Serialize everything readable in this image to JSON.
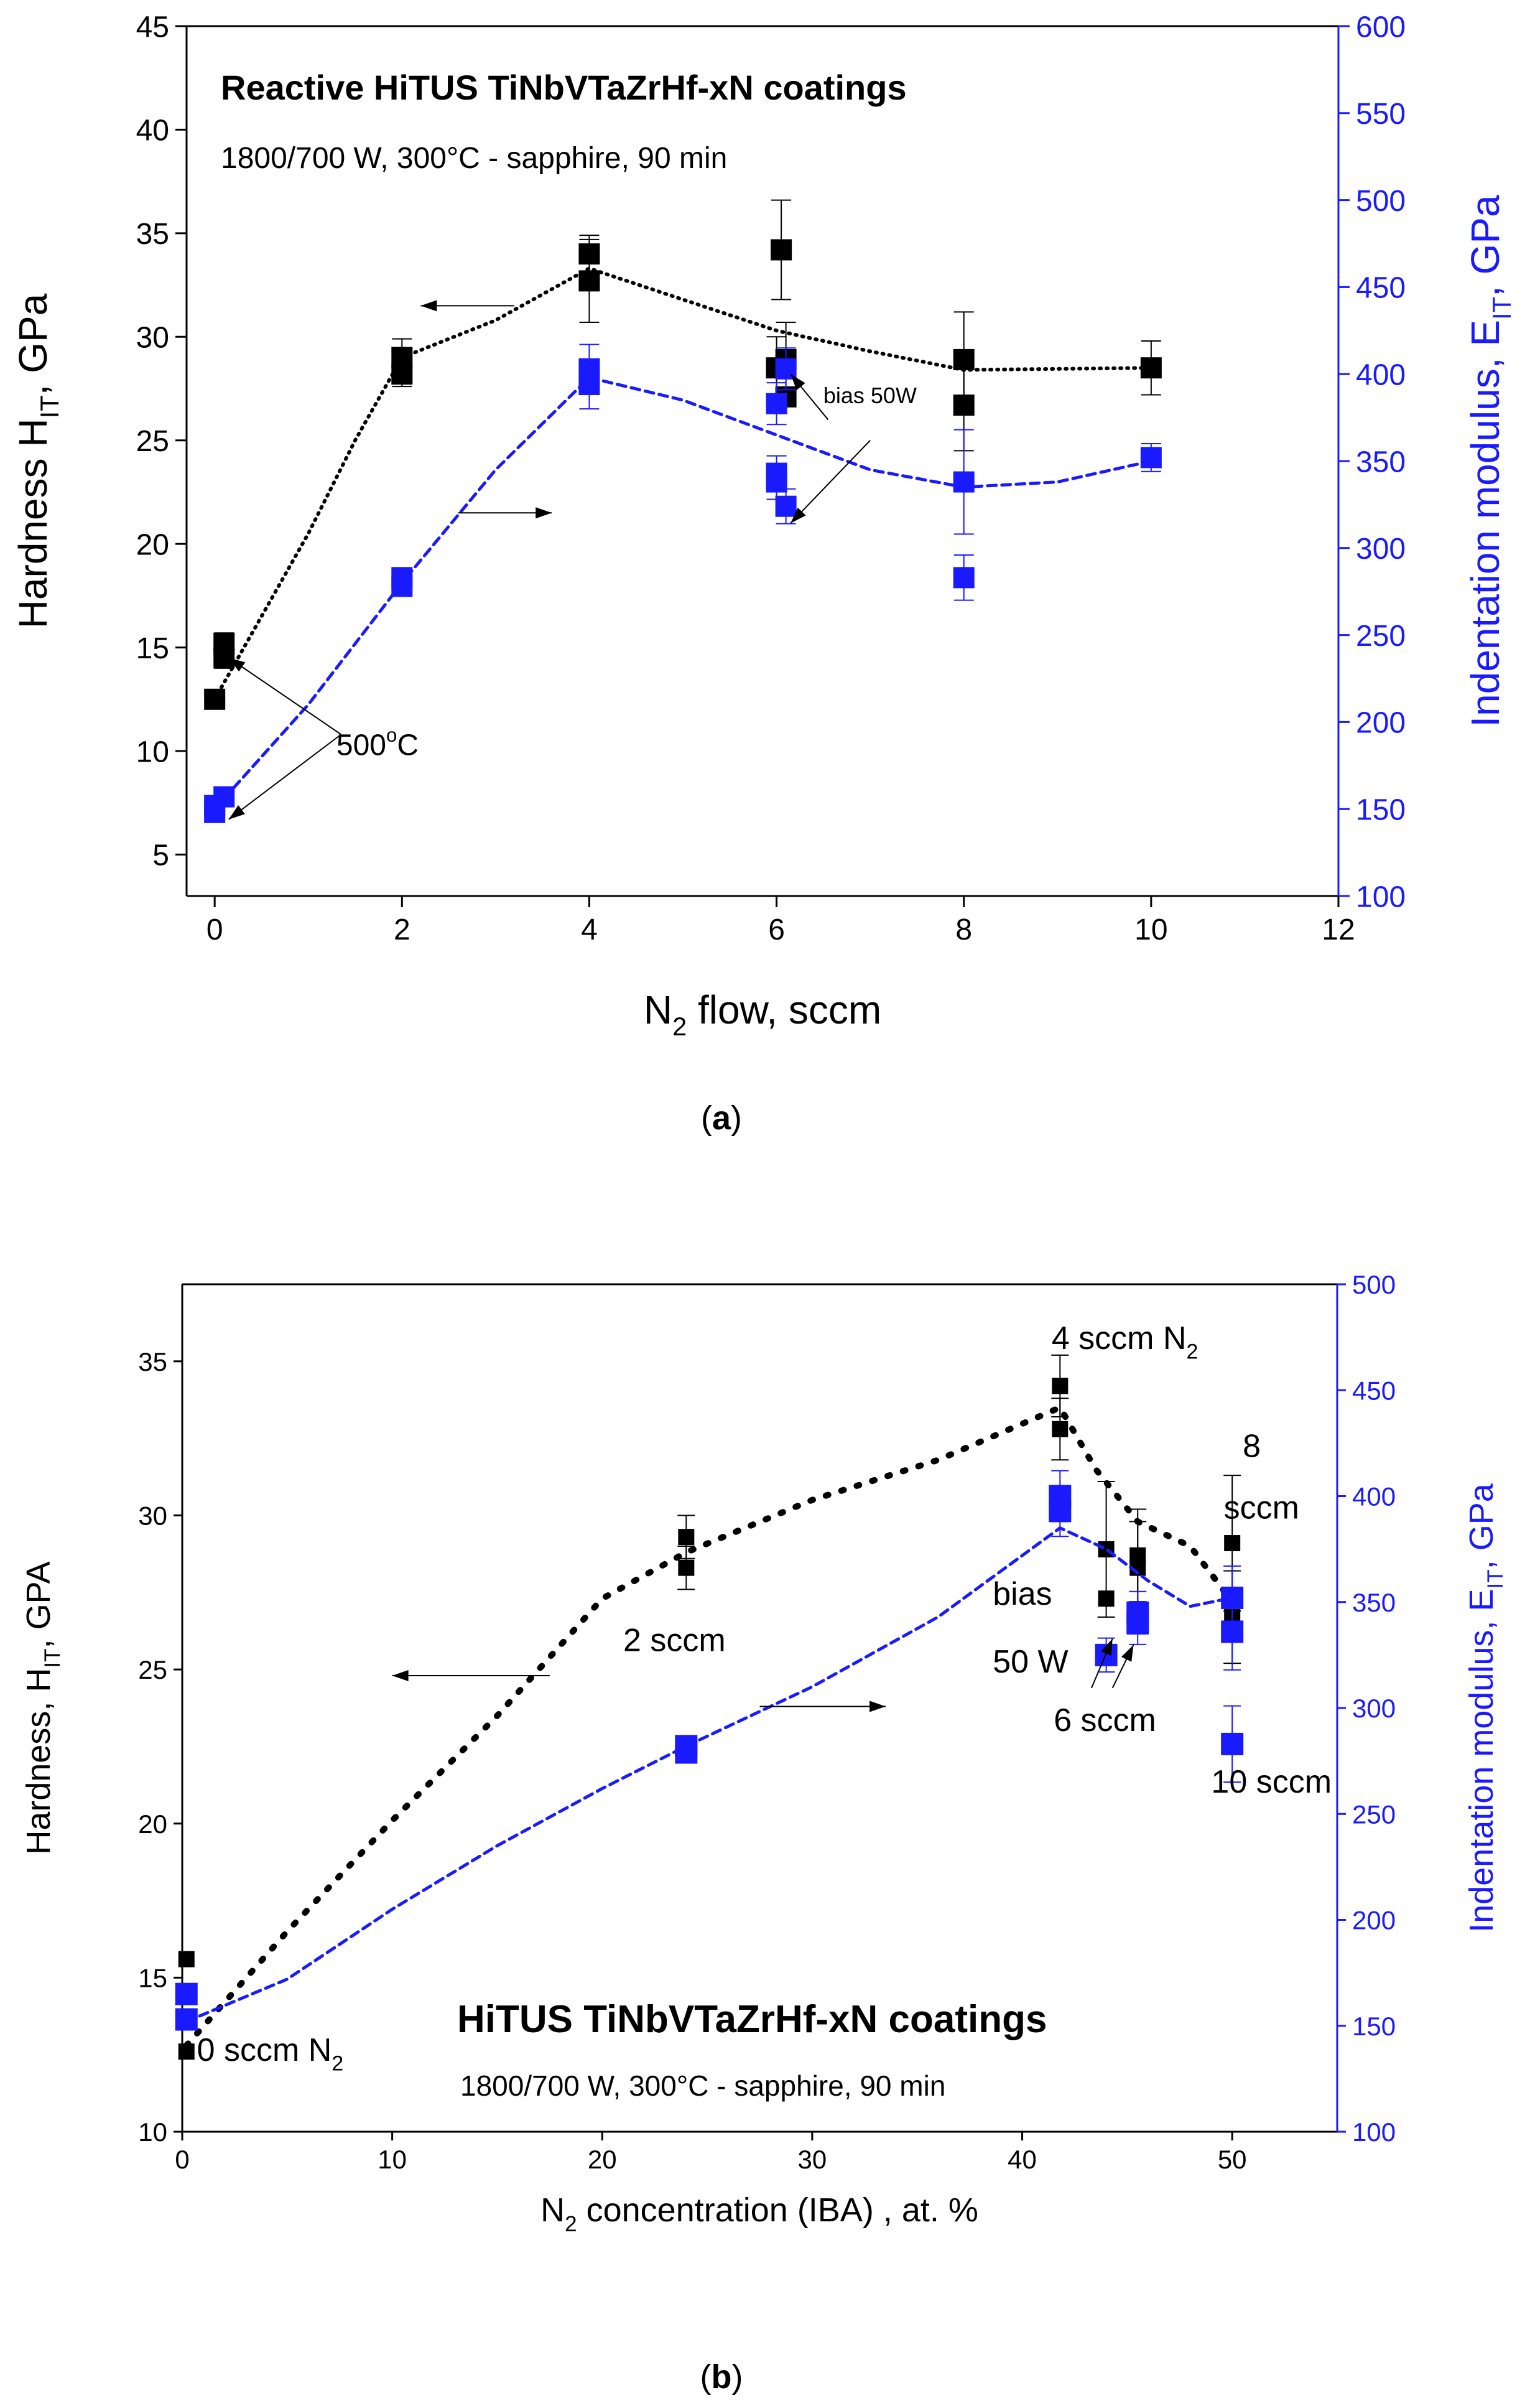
{
  "colors": {
    "hardness": "#000000",
    "modulus": "#1a1aff",
    "axis_right": "#1a1aff"
  },
  "panels": [
    {
      "label": "a",
      "caption_open": "(",
      "caption_close": ")"
    },
    {
      "label": "b",
      "caption_open": "(",
      "caption_close": ")"
    }
  ],
  "chart_data": [
    {
      "type": "scatter",
      "title": "Reactive HiTUS TiNbVTaZrHf-xN coatings",
      "subtitle": "1800/700 W, 300°C - sapphire, 90 min",
      "xlabel": {
        "main": "N",
        "sub": "2",
        "rest": " flow, sccm"
      },
      "ylabel_left": {
        "main": "Hardness H",
        "sub": "IT",
        "rest": ", GPa"
      },
      "ylabel_right": {
        "main": "Indentation modulus, E",
        "sub": "IT",
        "rest": ", GPa"
      },
      "xlim": [
        -0.3,
        12
      ],
      "ylim_left": [
        3,
        45
      ],
      "ylim_right": [
        100,
        600
      ],
      "xticks": [
        0,
        2,
        4,
        6,
        8,
        10,
        12
      ],
      "yticks_left": [
        5,
        10,
        15,
        20,
        25,
        30,
        35,
        40,
        45
      ],
      "yticks_right": [
        100,
        150,
        200,
        250,
        300,
        350,
        400,
        450,
        500,
        550,
        600
      ],
      "series": [
        {
          "axis": "left",
          "points": [
            {
              "x": 0.0,
              "y": 12.5,
              "err": 0
            },
            {
              "x": 0.1,
              "y": 15.2,
              "err": 0.5
            },
            {
              "x": 0.1,
              "y": 14.5,
              "err": 0.5
            },
            {
              "x": 2.0,
              "y": 29.0,
              "err": 0.9
            },
            {
              "x": 2.0,
              "y": 28.2,
              "err": 0.6
            },
            {
              "x": 4.0,
              "y": 34.0,
              "err": 0.9
            },
            {
              "x": 4.0,
              "y": 32.7,
              "err": 2.0
            },
            {
              "x": 6.0,
              "y": 28.5,
              "err": 1.5
            },
            {
              "x": 6.05,
              "y": 34.2,
              "err": 2.4
            },
            {
              "x": 6.1,
              "y": 28.9,
              "err": 1.8
            },
            {
              "x": 6.1,
              "y": 27.1,
              "err": 0
            },
            {
              "x": 8.0,
              "y": 28.9,
              "err": 2.3
            },
            {
              "x": 8.0,
              "y": 26.7,
              "err": 2.2
            },
            {
              "x": 10.0,
              "y": 28.5,
              "err": 1.3
            }
          ],
          "trend": [
            [
              0,
              12.5
            ],
            [
              0.5,
              16.5
            ],
            [
              1.0,
              20.5
            ],
            [
              1.5,
              25.0
            ],
            [
              2,
              29.0
            ],
            [
              3,
              30.8
            ],
            [
              4,
              33.3
            ],
            [
              5,
              31.8
            ],
            [
              6,
              30.3
            ],
            [
              7,
              29.3
            ],
            [
              8,
              28.4
            ],
            [
              10,
              28.5
            ]
          ]
        },
        {
          "axis": "right",
          "points": [
            {
              "x": 0.0,
              "y": 152,
              "err": 0
            },
            {
              "x": 0.0,
              "y": 148,
              "err": 0
            },
            {
              "x": 0.1,
              "y": 157,
              "err": 4
            },
            {
              "x": 2.0,
              "y": 283,
              "err": 5
            },
            {
              "x": 2.0,
              "y": 278,
              "err": 4
            },
            {
              "x": 4.0,
              "y": 403,
              "err": 14
            },
            {
              "x": 4.0,
              "y": 394,
              "err": 14
            },
            {
              "x": 6.0,
              "y": 383,
              "err": 12
            },
            {
              "x": 6.0,
              "y": 343,
              "err": 10
            },
            {
              "x": 6.0,
              "y": 338,
              "err": 10
            },
            {
              "x": 6.1,
              "y": 324,
              "err": 10
            },
            {
              "x": 6.1,
              "y": 403,
              "err": 12
            },
            {
              "x": 8.0,
              "y": 283,
              "err": 13
            },
            {
              "x": 8.0,
              "y": 338,
              "err": 30
            },
            {
              "x": 10.0,
              "y": 352,
              "err": 8
            }
          ],
          "trend": [
            [
              0,
              150
            ],
            [
              1,
              210
            ],
            [
              2,
              280
            ],
            [
              3,
              345
            ],
            [
              4,
              398
            ],
            [
              5,
              385
            ],
            [
              6,
              365
            ],
            [
              7,
              345
            ],
            [
              8,
              335
            ],
            [
              9,
              338
            ],
            [
              10,
              350
            ]
          ]
        }
      ],
      "annotations": [
        {
          "text": "bias 50W",
          "x": 6.5,
          "y": 26.8
        },
        {
          "text": "500",
          "sup": "o",
          "tail": "C",
          "x": 1.3,
          "y": 9.8
        }
      ]
    },
    {
      "type": "scatter",
      "title": "HiTUS TiNbVTaZrHf-xN coatings",
      "subtitle": "1800/700 W, 300°C - sapphire, 90 min",
      "xlabel": {
        "main": "N",
        "sub": "2",
        "rest": " concentration (IBA) , at. %"
      },
      "ylabel_left": {
        "main": "Hardness, H",
        "sub": "IT",
        "rest": ", GPA"
      },
      "ylabel_right": {
        "main": "Indentation modulus, E",
        "sub": "IT",
        "rest": ", GPa"
      },
      "xlim": [
        0,
        55
      ],
      "ylim_left": [
        10,
        37.5
      ],
      "ylim_right": [
        100,
        500
      ],
      "xticks": [
        0,
        10,
        20,
        30,
        40,
        50
      ],
      "yticks_left": [
        10,
        15,
        20,
        25,
        30,
        35
      ],
      "yticks_right": [
        100,
        150,
        200,
        250,
        300,
        350,
        400,
        450,
        500
      ],
      "series": [
        {
          "axis": "left",
          "points": [
            {
              "x": 0.2,
              "y": 15.6,
              "err": 0
            },
            {
              "x": 0.2,
              "y": 12.6,
              "err": 0
            },
            {
              "x": 24.0,
              "y": 29.3,
              "err": 0.7
            },
            {
              "x": 24.0,
              "y": 28.3,
              "err": 0.7
            },
            {
              "x": 41.8,
              "y": 34.2,
              "err": 1.0
            },
            {
              "x": 41.8,
              "y": 32.8,
              "err": 1.0
            },
            {
              "x": 44.0,
              "y": 28.9,
              "err": 2.2
            },
            {
              "x": 44.0,
              "y": 27.3,
              "err": 0
            },
            {
              "x": 45.5,
              "y": 28.7,
              "err": 1.5
            },
            {
              "x": 45.5,
              "y": 28.3,
              "err": 1.5
            },
            {
              "x": 50.0,
              "y": 29.1,
              "err": 2.2
            },
            {
              "x": 50.0,
              "y": 26.7,
              "err": 1.5
            }
          ],
          "trend": [
            [
              0.2,
              12.8
            ],
            [
              5,
              16.5
            ],
            [
              10,
              20.1
            ],
            [
              15,
              23.5
            ],
            [
              20,
              27.3
            ],
            [
              24,
              28.8
            ],
            [
              30,
              30.5
            ],
            [
              36,
              31.8
            ],
            [
              41.8,
              33.5
            ],
            [
              43.5,
              31.5
            ],
            [
              45.5,
              29.8
            ],
            [
              48,
              29.0
            ],
            [
              50,
              27.2
            ]
          ]
        },
        {
          "axis": "right",
          "points": [
            {
              "x": 0.2,
              "y": 165,
              "err": 0
            },
            {
              "x": 0.2,
              "y": 153,
              "err": 0
            },
            {
              "x": 24.0,
              "y": 282,
              "err": 3
            },
            {
              "x": 24.0,
              "y": 279,
              "err": 3
            },
            {
              "x": 41.8,
              "y": 400,
              "err": 12
            },
            {
              "x": 41.8,
              "y": 393,
              "err": 12
            },
            {
              "x": 44.0,
              "y": 325,
              "err": 8
            },
            {
              "x": 45.5,
              "y": 345,
              "err": 10
            },
            {
              "x": 45.5,
              "y": 340,
              "err": 10
            },
            {
              "x": 50.0,
              "y": 352,
              "err": 15
            },
            {
              "x": 50.0,
              "y": 336,
              "err": 18
            },
            {
              "x": 50.0,
              "y": 283,
              "err": 18
            }
          ],
          "trend": [
            [
              0.2,
              152
            ],
            [
              5,
              172
            ],
            [
              10,
              205
            ],
            [
              15,
              235
            ],
            [
              20,
              262
            ],
            [
              24,
              282
            ],
            [
              30,
              310
            ],
            [
              36,
              343
            ],
            [
              41.8,
              385
            ],
            [
              44,
              375
            ],
            [
              46,
              360
            ],
            [
              48,
              348
            ],
            [
              50,
              352
            ]
          ]
        }
      ],
      "annotations": [
        {
          "text": "4 sccm N",
          "sub": "2",
          "x": 41.4,
          "y": 35.4
        },
        {
          "text": "8",
          "x": 50.5,
          "y": 31.9
        },
        {
          "text": "sccm",
          "x": 49.6,
          "y": 29.9
        },
        {
          "text": "2 sccm",
          "x": 21.0,
          "y": 25.6
        },
        {
          "text": "bias",
          "x": 38.6,
          "y": 27.1
        },
        {
          "text": "50 W",
          "x": 38.6,
          "y": 24.9
        },
        {
          "text": "6 sccm",
          "x": 41.5,
          "y": 23.0
        },
        {
          "text": "10 sccm",
          "x": 49.0,
          "y": 21.0
        },
        {
          "text": "0 sccm N",
          "sub": "2",
          "x": 0.7,
          "y": 12.3
        }
      ]
    }
  ]
}
